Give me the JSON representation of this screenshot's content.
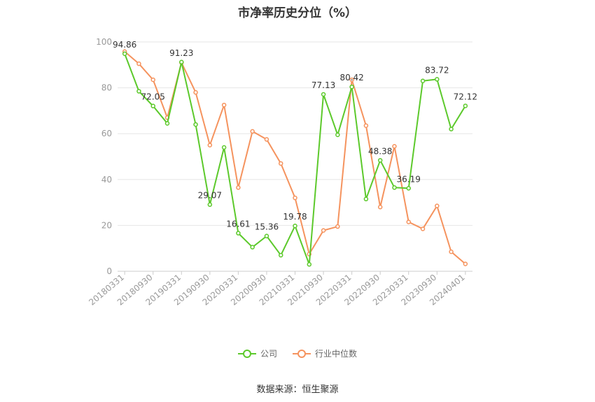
{
  "chart_data": {
    "type": "line",
    "title": "市净率历史分位（%）",
    "x_tick_labels": [
      "20180331",
      "20180930",
      "20190331",
      "20190930",
      "20200331",
      "20200930",
      "20210331",
      "20210930",
      "20220331",
      "20220930",
      "20230331",
      "20230930",
      "20240401"
    ],
    "ylim": [
      0,
      100
    ],
    "y_ticks": [
      0,
      20,
      40,
      60,
      80,
      100
    ],
    "grid": true,
    "legend_position": "bottom",
    "series": [
      {
        "name": "公司",
        "color": "#5cc92b",
        "values": [
          94.86,
          78.5,
          72.05,
          64.5,
          91.23,
          64.0,
          29.07,
          54.0,
          16.61,
          10.5,
          15.36,
          7.0,
          19.78,
          3.0,
          77.13,
          59.5,
          80.42,
          31.5,
          48.38,
          36.5,
          36.19,
          83.0,
          83.72,
          62.0,
          72.12
        ],
        "labels": {
          "0": "94.86",
          "2": "72.05",
          "4": "91.23",
          "6": "29.07",
          "8": "16.61",
          "10": "15.36",
          "12": "19.78",
          "14": "77.13",
          "16": "80.42",
          "18": "48.38",
          "20": "36.19",
          "22": "83.72",
          "24": "72.12"
        }
      },
      {
        "name": "行业中位数",
        "color": "#f5935e",
        "values": [
          95.8,
          90.5,
          83.5,
          67.0,
          91.0,
          78.0,
          55.0,
          72.5,
          36.5,
          61.0,
          57.5,
          47.0,
          32.0,
          7.5,
          17.8,
          19.5,
          83.5,
          63.5,
          28.0,
          54.5,
          21.5,
          18.5,
          28.5,
          8.5,
          3.2
        ]
      }
    ]
  },
  "source_text": "数据来源：恒生聚源"
}
